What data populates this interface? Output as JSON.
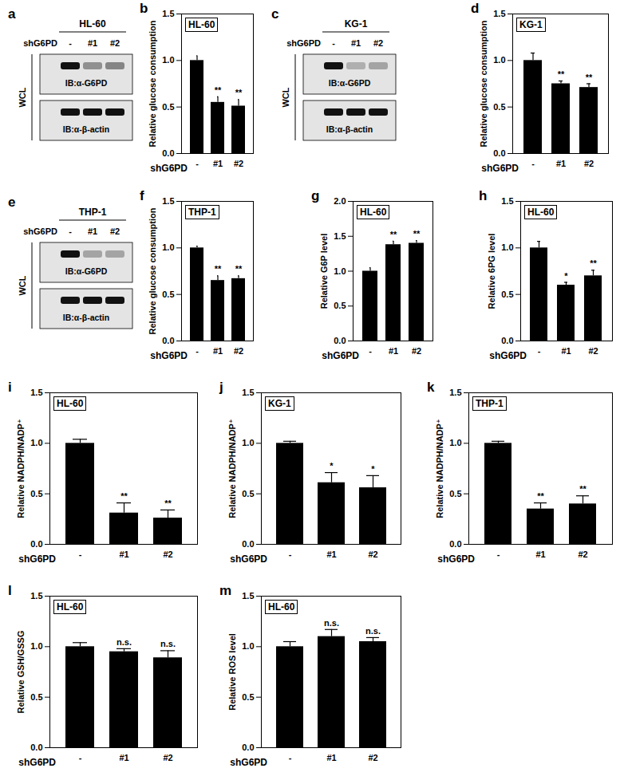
{
  "chart_data": [
    {
      "panel": "a",
      "type": "western_blot",
      "title": "HL-60",
      "lane_label": "shG6PD",
      "categories": [
        "-",
        "#1",
        "#2"
      ],
      "side_label": "WCL",
      "rows": [
        {
          "name": "IB:α-G6PD",
          "values": [
            1,
            0.4,
            0.45
          ]
        },
        {
          "name": "IB:α-β-actin",
          "values": [
            1,
            1,
            1
          ]
        }
      ]
    },
    {
      "panel": "b",
      "type": "bar",
      "title": "HL-60",
      "ylabel": "Relative glucose consumption",
      "xlabel": "shG6PD",
      "categories": [
        "-",
        "#1",
        "#2"
      ],
      "values": [
        1.0,
        0.55,
        0.51
      ],
      "errors": [
        0.05,
        0.06,
        0.07
      ],
      "significance": [
        null,
        "**",
        "**"
      ],
      "color": "#000000",
      "ylim": [
        0,
        1.5
      ],
      "yticks": [
        {
          "value": 0,
          "label": "0.0"
        },
        0.5,
        {
          "value": 1,
          "label": "1.0"
        },
        1.5
      ]
    },
    {
      "panel": "c",
      "type": "western_blot",
      "title": "KG-1",
      "lane_label": "shG6PD",
      "categories": [
        "-",
        "#1",
        "#2"
      ],
      "side_label": "WCL",
      "rows": [
        {
          "name": "IB:α-G6PD",
          "values": [
            1,
            0.25,
            0.3
          ]
        },
        {
          "name": "IB:α-β-actin",
          "values": [
            1,
            1,
            1
          ]
        }
      ]
    },
    {
      "panel": "d",
      "type": "bar",
      "title": "KG-1",
      "ylabel": "Relative glucose consumption",
      "xlabel": "shG6PD",
      "categories": [
        "-",
        "#1",
        "#2"
      ],
      "values": [
        1.0,
        0.75,
        0.71
      ],
      "errors": [
        0.08,
        0.03,
        0.04
      ],
      "significance": [
        null,
        "**",
        "**"
      ],
      "color": "#000000",
      "ylim": [
        0,
        1.5
      ],
      "yticks": [
        {
          "value": 0,
          "label": "0.0"
        },
        0.5,
        {
          "value": 1,
          "label": "1.0"
        },
        1.5
      ]
    },
    {
      "panel": "e",
      "type": "western_blot",
      "title": "THP-1",
      "lane_label": "shG6PD",
      "categories": [
        "-",
        "#1",
        "#2"
      ],
      "side_label": "WCL",
      "rows": [
        {
          "name": "IB:α-G6PD",
          "values": [
            1,
            0.3,
            0.3
          ]
        },
        {
          "name": "IB:α-β-actin",
          "values": [
            1,
            1,
            1
          ]
        }
      ]
    },
    {
      "panel": "f",
      "type": "bar",
      "title": "THP-1",
      "ylabel": "Relative glucose consumption",
      "xlabel": "shG6PD",
      "categories": [
        "-",
        "#1",
        "#2"
      ],
      "values": [
        1.0,
        0.65,
        0.67
      ],
      "errors": [
        0.02,
        0.05,
        0.03
      ],
      "significance": [
        null,
        "**",
        "**"
      ],
      "color": "#000000",
      "ylim": [
        0,
        1.5
      ],
      "yticks": [
        {
          "value": 0,
          "label": "0.0"
        },
        0.5,
        {
          "value": 1,
          "label": "1.0"
        },
        1.5
      ]
    },
    {
      "panel": "g",
      "type": "bar",
      "title": "HL-60",
      "ylabel": "Relative G6P level",
      "xlabel": "shG6PD",
      "categories": [
        "-",
        "#1",
        "#2"
      ],
      "values": [
        1.0,
        1.38,
        1.4
      ],
      "errors": [
        0.05,
        0.05,
        0.04
      ],
      "significance": [
        null,
        "**",
        "**"
      ],
      "color": "#000000",
      "ylim": [
        0,
        2
      ],
      "yticks": [
        {
          "value": 0,
          "label": "0.0"
        },
        0.5,
        {
          "value": 1,
          "label": "1.0"
        },
        1.5,
        {
          "value": 2,
          "label": "2.0"
        }
      ]
    },
    {
      "panel": "h",
      "type": "bar",
      "title": "HL-60",
      "ylabel": "Relative 6PG level",
      "xlabel": "shG6PD",
      "categories": [
        "-",
        "#1",
        "#2"
      ],
      "values": [
        1.0,
        0.6,
        0.7
      ],
      "errors": [
        0.07,
        0.03,
        0.06
      ],
      "significance": [
        null,
        "*",
        "**"
      ],
      "color": "#000000",
      "ylim": [
        0,
        1.5
      ],
      "yticks": [
        {
          "value": 0,
          "label": "0.0"
        },
        0.5,
        {
          "value": 1,
          "label": "1.0"
        },
        1.5
      ]
    },
    {
      "panel": "i",
      "type": "bar",
      "title": "HL-60",
      "ylabel": "Relative NADPH/NADP⁺",
      "xlabel": "shG6PD",
      "categories": [
        "-",
        "#1",
        "#2"
      ],
      "values": [
        1.0,
        0.31,
        0.26
      ],
      "errors": [
        0.04,
        0.1,
        0.08
      ],
      "significance": [
        null,
        "**",
        "**"
      ],
      "color": "#000000",
      "ylim": [
        0,
        1.5
      ],
      "yticks": [
        {
          "value": 0,
          "label": "0.0"
        },
        0.5,
        {
          "value": 1,
          "label": "1.0"
        },
        1.5
      ]
    },
    {
      "panel": "j",
      "type": "bar",
      "title": "KG-1",
      "ylabel": "Relative NADPH/NADP⁺",
      "xlabel": "shG6PD",
      "categories": [
        "-",
        "#1",
        "#2"
      ],
      "values": [
        1.0,
        0.61,
        0.56
      ],
      "errors": [
        0.02,
        0.1,
        0.12
      ],
      "significance": [
        null,
        "*",
        "*"
      ],
      "color": "#000000",
      "ylim": [
        0,
        1.5
      ],
      "yticks": [
        {
          "value": 0,
          "label": "0.0"
        },
        0.5,
        {
          "value": 1,
          "label": "1.0"
        },
        1.5
      ]
    },
    {
      "panel": "k",
      "type": "bar",
      "title": "THP-1",
      "ylabel": "Relative NADPH/NADP⁺",
      "xlabel": "shG6PD",
      "categories": [
        "-",
        "#1",
        "#2"
      ],
      "values": [
        1.0,
        0.35,
        0.4
      ],
      "errors": [
        0.02,
        0.06,
        0.08
      ],
      "significance": [
        null,
        "**",
        "**"
      ],
      "color": "#000000",
      "ylim": [
        0,
        1.5
      ],
      "yticks": [
        {
          "value": 0,
          "label": "0.0"
        },
        0.5,
        {
          "value": 1,
          "label": "1.0"
        },
        1.5
      ]
    },
    {
      "panel": "l",
      "type": "bar",
      "title": "HL-60",
      "ylabel": "Relative GSH/GSSG",
      "xlabel": "shG6PD",
      "categories": [
        "-",
        "#1",
        "#2"
      ],
      "values": [
        1.0,
        0.95,
        0.89
      ],
      "errors": [
        0.04,
        0.03,
        0.07
      ],
      "significance": [
        null,
        "n.s.",
        "n.s."
      ],
      "color": "#000000",
      "ylim": [
        0,
        1.5
      ],
      "yticks": [
        {
          "value": 0,
          "label": "0.0"
        },
        0.5,
        {
          "value": 1,
          "label": "1.0"
        },
        1.5
      ]
    },
    {
      "panel": "m",
      "type": "bar",
      "title": "HL-60",
      "ylabel": "Relative ROS level",
      "xlabel": "shG6PD",
      "categories": [
        "-",
        "#1",
        "#2"
      ],
      "values": [
        1.0,
        1.1,
        1.05
      ],
      "errors": [
        0.05,
        0.07,
        0.04
      ],
      "significance": [
        null,
        "n.s.",
        "n.s."
      ],
      "color": "#000000",
      "ylim": [
        0,
        1.5
      ],
      "yticks": [
        {
          "value": 0,
          "label": "0.0"
        },
        0.5,
        {
          "value": 1,
          "label": "1.0"
        },
        1.5
      ]
    }
  ]
}
